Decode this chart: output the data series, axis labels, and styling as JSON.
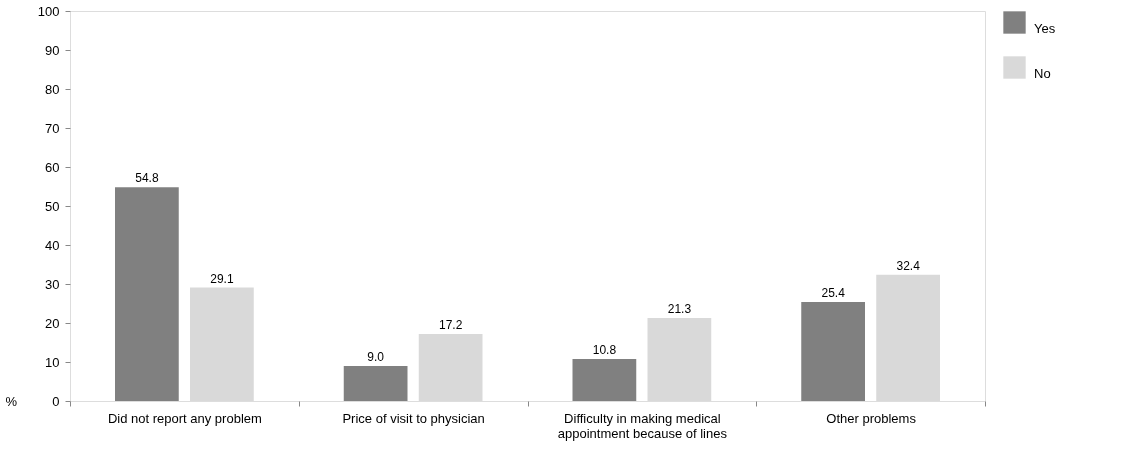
{
  "chart_data": {
    "type": "bar",
    "ylabel": "%",
    "categories": [
      "Did not report any problem",
      "Price of visit to physician",
      "Difficulty in making medical appointment because of lines",
      "Other problems"
    ],
    "series": [
      {
        "name": "Yes",
        "color": "#808080",
        "values": [
          54.8,
          9.0,
          10.8,
          25.4
        ],
        "value_labels": [
          "54.8",
          "9.0",
          "10.8",
          "25.4"
        ]
      },
      {
        "name": "No",
        "color": "#d9d9d9",
        "values": [
          29.1,
          17.2,
          21.3,
          32.4
        ],
        "value_labels": [
          "29.1",
          "17.2",
          "21.3",
          "32.4"
        ]
      }
    ],
    "ylim": [
      0,
      100
    ],
    "yticks": [
      0,
      10,
      20,
      30,
      40,
      50,
      60,
      70,
      80,
      90,
      100
    ],
    "grid": false,
    "legend": "top right"
  }
}
